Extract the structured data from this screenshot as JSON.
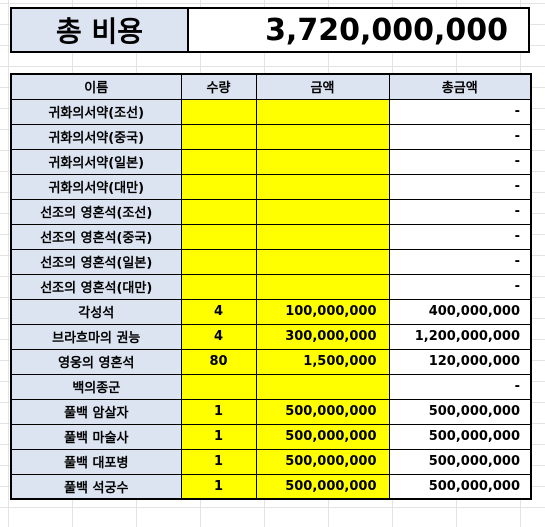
{
  "summary": {
    "label": "총 비용",
    "value": "3,720,000,000"
  },
  "table": {
    "headers": [
      "이름",
      "수량",
      "금액",
      "총금액"
    ],
    "rows": [
      {
        "name": "귀화의서약(조선)",
        "qty": "",
        "amount": "",
        "total": "-"
      },
      {
        "name": "귀화의서약(중국)",
        "qty": "",
        "amount": "",
        "total": "-"
      },
      {
        "name": "귀화의서약(일본)",
        "qty": "",
        "amount": "",
        "total": "-"
      },
      {
        "name": "귀화의서약(대만)",
        "qty": "",
        "amount": "",
        "total": "-"
      },
      {
        "name": "선조의 영혼석(조선)",
        "qty": "",
        "amount": "",
        "total": "-"
      },
      {
        "name": "선조의 영혼석(중국)",
        "qty": "",
        "amount": "",
        "total": "-"
      },
      {
        "name": "선조의 영혼석(일본)",
        "qty": "",
        "amount": "",
        "total": "-"
      },
      {
        "name": "선조의 영혼석(대만)",
        "qty": "",
        "amount": "",
        "total": "-"
      },
      {
        "name": "각성석",
        "qty": "4",
        "amount": "100,000,000",
        "total": "400,000,000"
      },
      {
        "name": "브라흐마의 권능",
        "qty": "4",
        "amount": "300,000,000",
        "total": "1,200,000,000"
      },
      {
        "name": "영웅의 영혼석",
        "qty": "80",
        "amount": "1,500,000",
        "total": "120,000,000"
      },
      {
        "name": "백의종군",
        "qty": "",
        "amount": "",
        "total": "-"
      },
      {
        "name": "풀백 암살자",
        "qty": "1",
        "amount": "500,000,000",
        "total": "500,000,000"
      },
      {
        "name": "풀백 마술사",
        "qty": "1",
        "amount": "500,000,000",
        "total": "500,000,000"
      },
      {
        "name": "풀백 대포병",
        "qty": "1",
        "amount": "500,000,000",
        "total": "500,000,000"
      },
      {
        "name": "풀백 석궁수",
        "qty": "1",
        "amount": "500,000,000",
        "total": "500,000,000"
      }
    ]
  },
  "colors": {
    "header_fill": "#dce4f2",
    "input_fill": "#ffff00",
    "border": "#000000"
  }
}
